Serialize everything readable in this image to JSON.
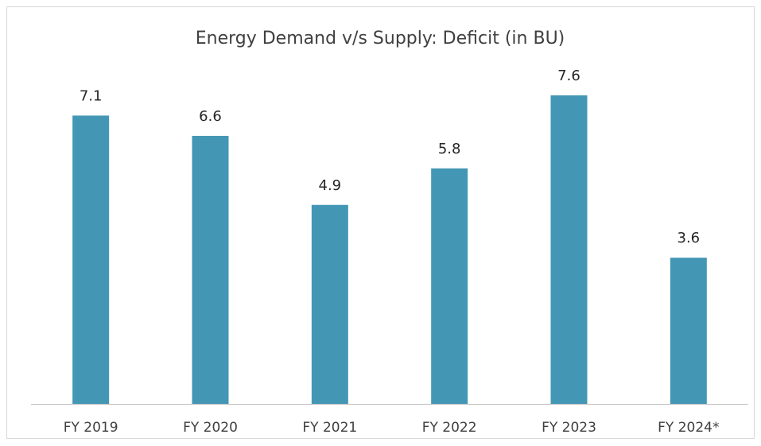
{
  "chart_data": {
    "type": "bar",
    "title": "Energy Demand v/s Supply: Deficit (in BU)",
    "categories": [
      "FY 2019",
      "FY 2020",
      "FY 2021",
      "FY 2022",
      "FY 2023",
      "FY 2024*"
    ],
    "values": [
      7.1,
      6.6,
      4.9,
      5.8,
      7.6,
      3.6
    ],
    "color": "#4397b5",
    "ylim": [
      0,
      8.4
    ]
  }
}
